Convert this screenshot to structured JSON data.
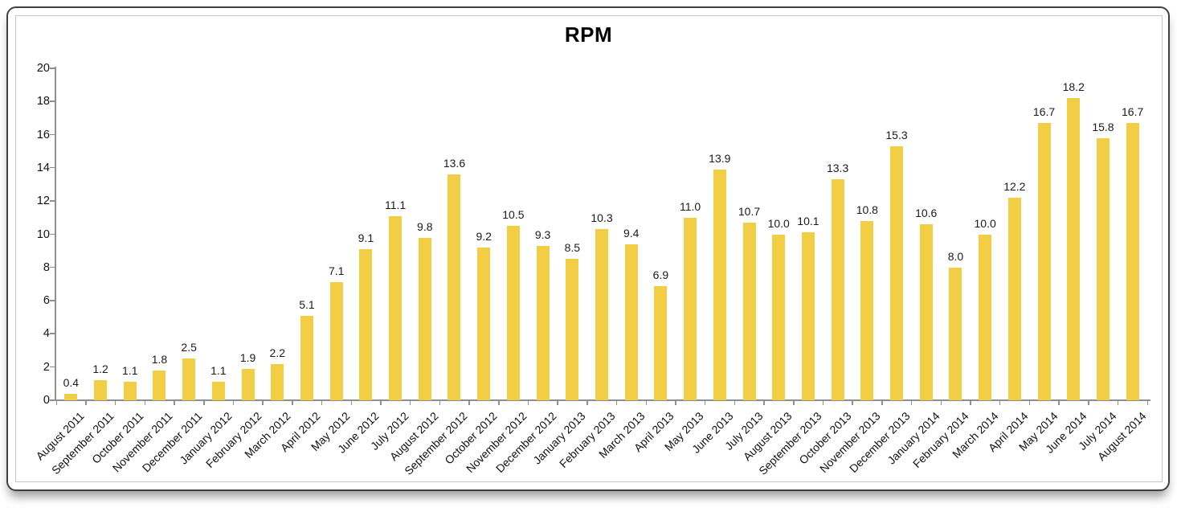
{
  "page": {
    "background_color": "#ffffff",
    "frame_border_color": "#404040",
    "inner_border_color": "#c6c6c6"
  },
  "chart_data": {
    "type": "bar",
    "title": "RPM",
    "xlabel": "",
    "ylabel": "",
    "ylim": [
      0,
      20
    ],
    "ytick_step": 2,
    "grid": false,
    "legend_position": "none",
    "bar_color": "#F2CE44",
    "axis_color": "#8f8f8f",
    "text_color": "#111111",
    "value_label_decimals": 1,
    "x_label_rotation_deg": -45,
    "categories": [
      "August 2011",
      "September 2011",
      "October 2011",
      "November 2011",
      "December 2011",
      "January 2012",
      "February 2012",
      "March 2012",
      "April 2012",
      "May 2012",
      "June 2012",
      "July 2012",
      "August 2012",
      "September 2012",
      "October 2012",
      "November 2012",
      "December 2012",
      "January 2013",
      "February 2013",
      "March 2013",
      "April 2013",
      "May 2013",
      "June 2013",
      "July 2013",
      "August 2013",
      "September 2013",
      "October 2013",
      "November 2013",
      "December 2013",
      "January 2014",
      "February 2014",
      "March 2014",
      "April 2014",
      "May 2014",
      "June 2014",
      "July 2014",
      "August 2014"
    ],
    "values": [
      0.4,
      1.2,
      1.1,
      1.8,
      2.5,
      1.1,
      1.9,
      2.2,
      5.1,
      7.1,
      9.1,
      11.1,
      9.8,
      13.6,
      9.2,
      10.5,
      9.3,
      8.5,
      10.3,
      9.4,
      6.9,
      11.0,
      13.9,
      10.7,
      10.0,
      10.1,
      13.3,
      10.8,
      15.3,
      10.6,
      8.0,
      10.0,
      12.2,
      16.7,
      18.2,
      15.8,
      16.7
    ]
  }
}
